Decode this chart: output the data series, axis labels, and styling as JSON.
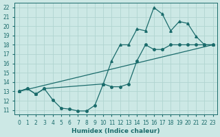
{
  "xlabel": "Humidex (Indice chaleur)",
  "bg_color": "#cce8e5",
  "line_color": "#1a6b6b",
  "grid_color": "#b0d4d0",
  "xlim": [
    -0.5,
    23.5
  ],
  "ylim": [
    10.5,
    22.5
  ],
  "xticks": [
    0,
    1,
    2,
    3,
    4,
    5,
    6,
    7,
    8,
    9,
    10,
    11,
    12,
    13,
    14,
    15,
    16,
    17,
    18,
    19,
    20,
    21,
    22,
    23
  ],
  "yticks": [
    11,
    12,
    13,
    14,
    15,
    16,
    17,
    18,
    19,
    20,
    21,
    22
  ],
  "curve1_x": [
    0,
    1,
    2,
    3,
    4,
    5,
    6,
    7,
    8,
    9,
    10,
    11,
    12,
    13,
    14,
    15,
    16,
    17,
    18,
    19,
    20,
    21,
    22,
    23
  ],
  "curve1_y": [
    13,
    13.3,
    12.7,
    13.3,
    12.1,
    11.2,
    11.1,
    10.9,
    10.9,
    11.5,
    13.8,
    13.5,
    13.5,
    13.8,
    16.3,
    18.0,
    17.5,
    17.5,
    18.0,
    18.0,
    18.0,
    18.0,
    18.0,
    18.0
  ],
  "curve2_x": [
    0,
    1,
    2,
    3,
    10,
    11,
    12,
    13,
    14,
    15,
    16,
    17,
    18,
    19,
    20,
    21,
    22,
    23
  ],
  "curve2_y": [
    13,
    13.3,
    12.7,
    13.3,
    13.8,
    16.3,
    18.0,
    18.0,
    19.7,
    19.5,
    22.0,
    21.3,
    19.5,
    20.5,
    20.3,
    18.9,
    18.0,
    18.0
  ],
  "curve3_x": [
    0,
    23
  ],
  "curve3_y": [
    13,
    18.0
  ]
}
